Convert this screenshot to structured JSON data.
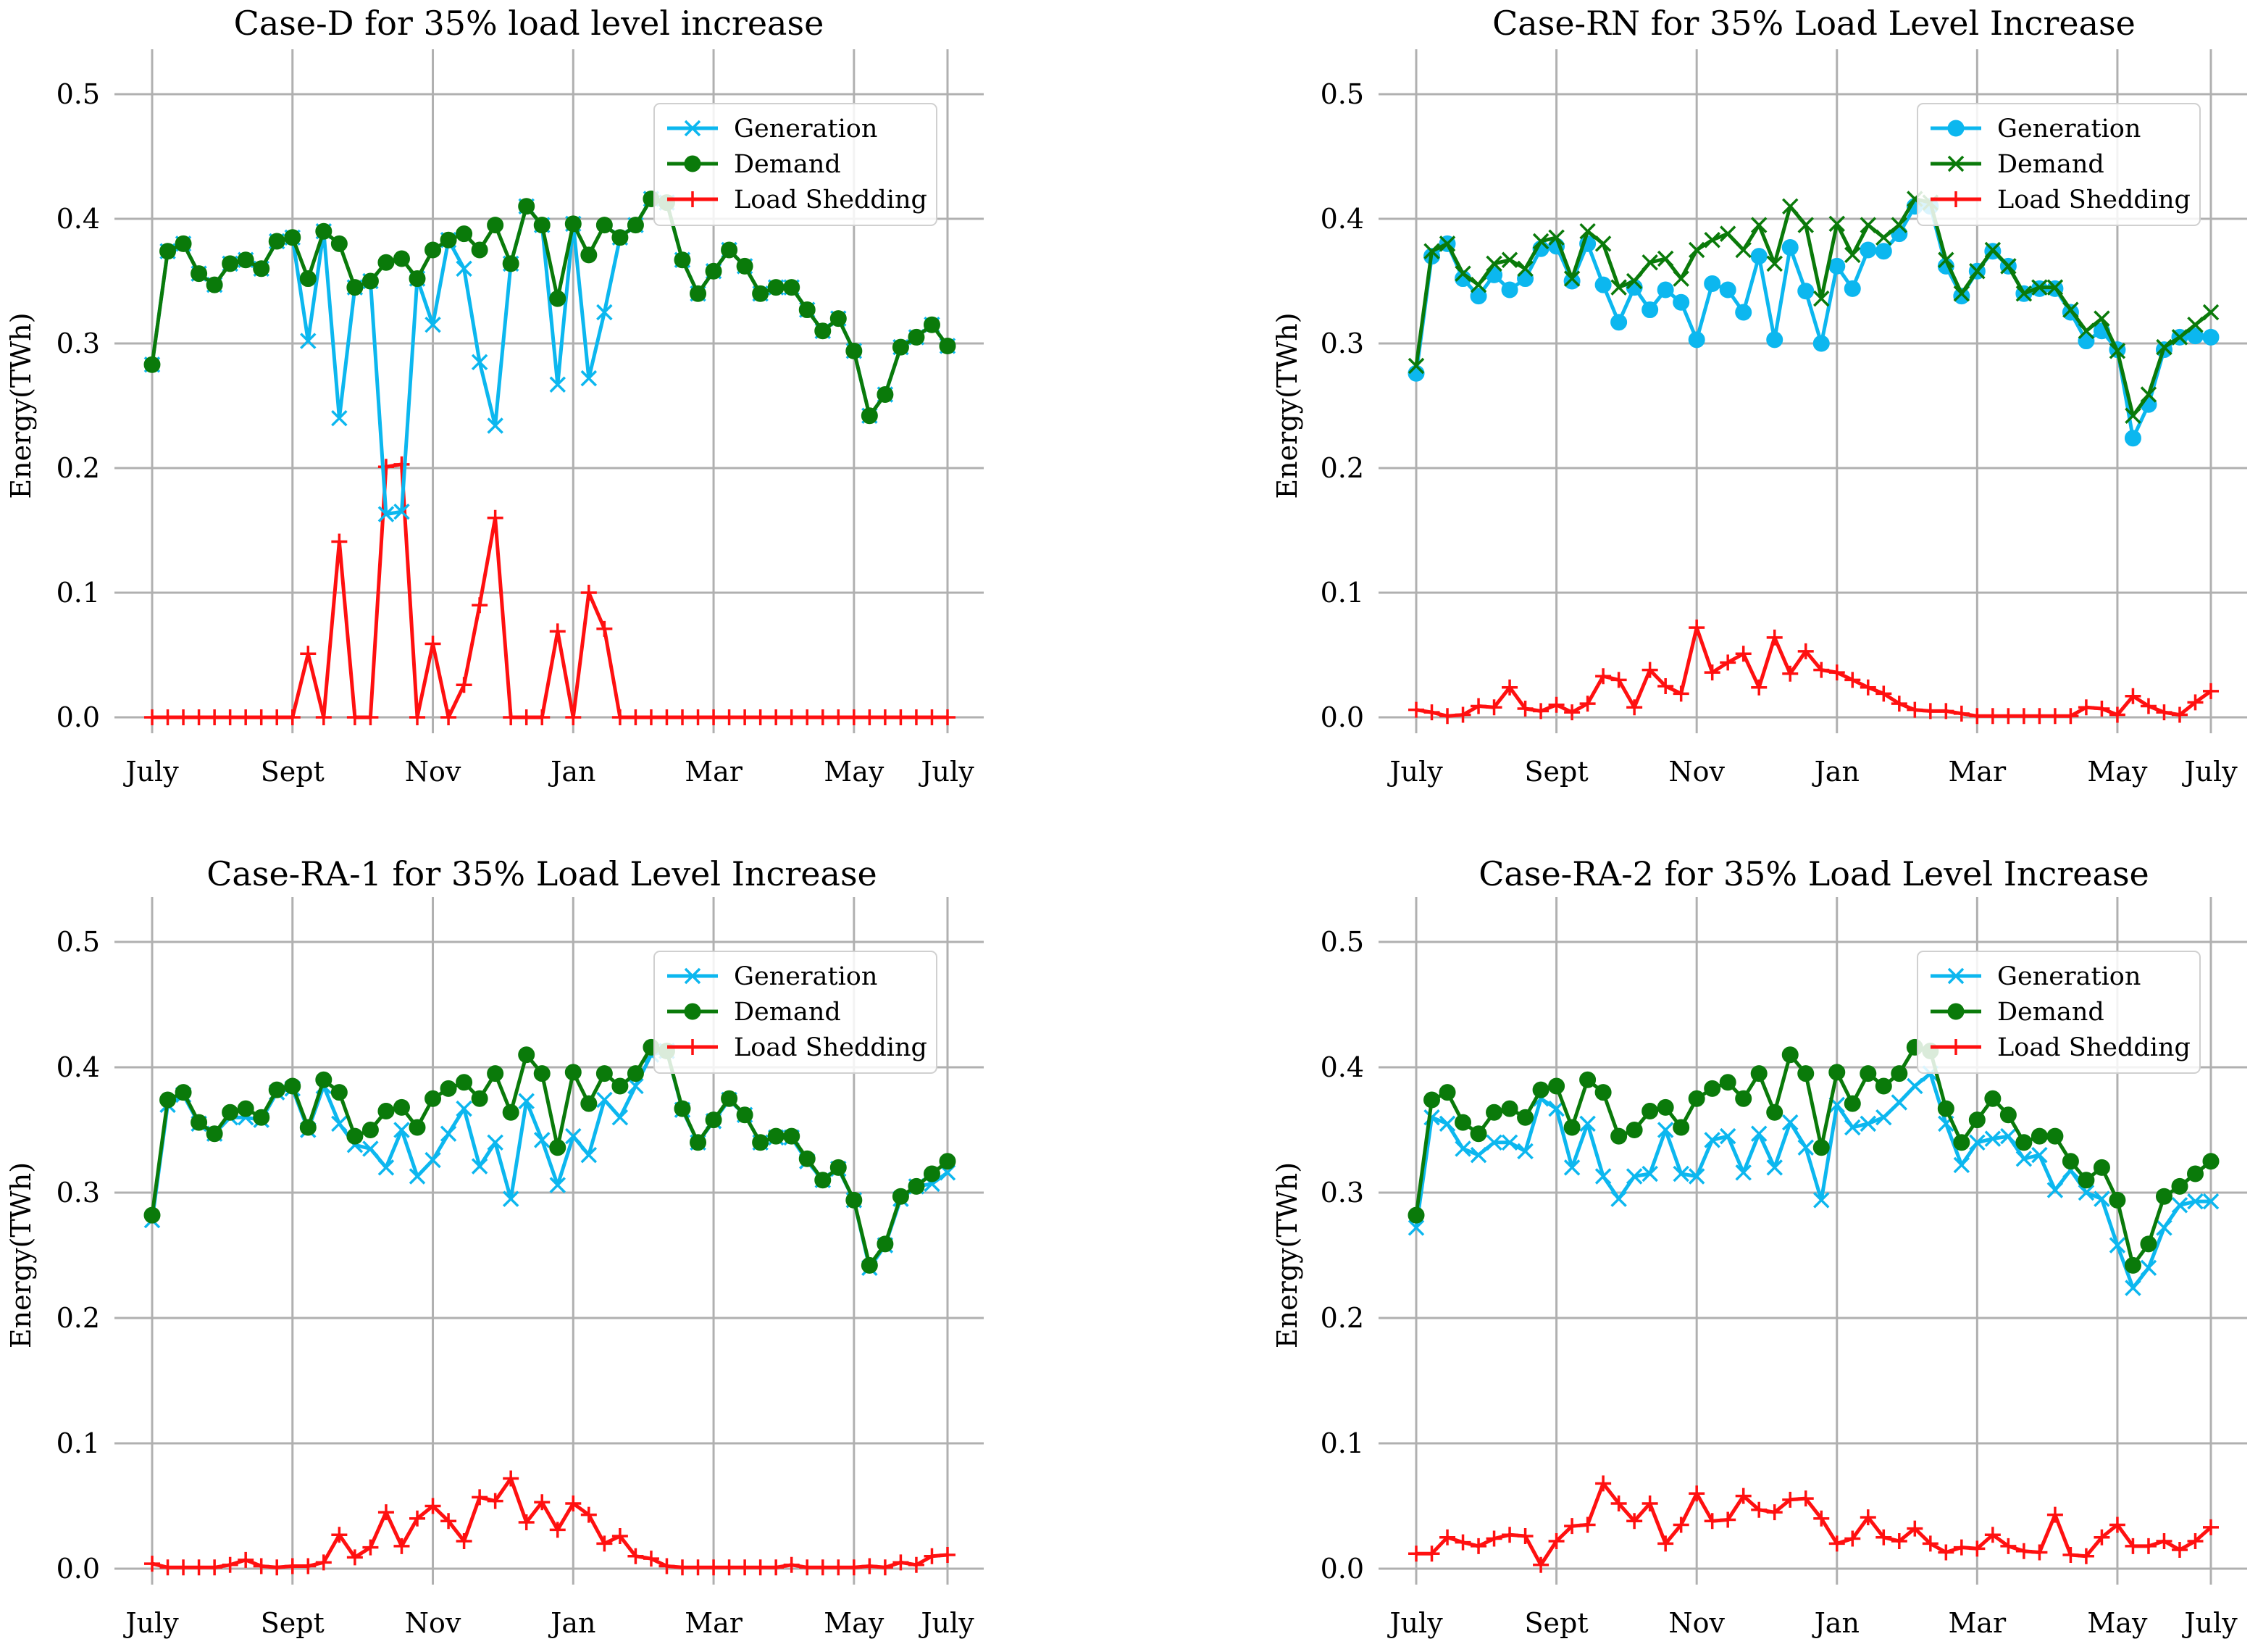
{
  "figure": {
    "colors": {
      "generation": "#0cb7ef",
      "demand": "#0a7a0a",
      "load_shedding": "#ff1010",
      "grid": "#b0b0b0"
    }
  },
  "chart_data": [
    {
      "type": "line",
      "title": "Case-D for 35% load level increase",
      "xlabel": "",
      "ylabel": "Energy(TWh)",
      "ylim": [
        0,
        0.5
      ],
      "yticks": [
        "0.0",
        "0.1",
        "0.2",
        "0.3",
        "0.4",
        "0.5"
      ],
      "xticks": [
        "July",
        "Sept",
        "Nov",
        "Jan",
        "Mar",
        "May",
        "July"
      ],
      "legend": "top-right",
      "series": [
        {
          "name": "Generation",
          "color": "#0cb7ef",
          "marker": "x",
          "values": [
            0.283,
            0.374,
            0.38,
            0.356,
            0.347,
            0.364,
            0.367,
            0.36,
            0.382,
            0.385,
            0.302,
            0.39,
            0.24,
            0.345,
            0.35,
            0.163,
            0.165,
            0.352,
            0.315,
            0.383,
            0.36,
            0.285,
            0.234,
            0.364,
            0.41,
            0.395,
            0.267,
            0.396,
            0.272,
            0.325,
            0.385,
            0.395,
            0.416,
            0.413,
            0.367,
            0.34,
            0.358,
            0.375,
            0.362,
            0.34,
            0.345,
            0.345,
            0.327,
            0.31,
            0.32,
            0.294,
            0.242,
            0.259,
            0.297,
            0.305,
            0.315,
            0.298
          ]
        },
        {
          "name": "Demand",
          "color": "#0a7a0a",
          "marker": "o",
          "values": [
            0.283,
            0.374,
            0.38,
            0.356,
            0.347,
            0.364,
            0.367,
            0.36,
            0.382,
            0.385,
            0.352,
            0.39,
            0.38,
            0.345,
            0.35,
            0.365,
            0.368,
            0.352,
            0.375,
            0.383,
            0.388,
            0.375,
            0.395,
            0.364,
            0.41,
            0.395,
            0.336,
            0.396,
            0.371,
            0.395,
            0.385,
            0.395,
            0.416,
            0.413,
            0.367,
            0.34,
            0.358,
            0.375,
            0.362,
            0.34,
            0.345,
            0.345,
            0.327,
            0.31,
            0.32,
            0.294,
            0.242,
            0.259,
            0.297,
            0.305,
            0.315,
            0.298
          ]
        },
        {
          "name": "Load Shedding",
          "color": "#ff1010",
          "marker": "+",
          "values": [
            0,
            0,
            0,
            0,
            0,
            0,
            0,
            0,
            0,
            0,
            0.051,
            0,
            0.141,
            0,
            0,
            0.201,
            0.203,
            0,
            0.059,
            0,
            0.026,
            0.09,
            0.16,
            0,
            0,
            0,
            0.069,
            0,
            0.1,
            0.071,
            0,
            0,
            0,
            0,
            0,
            0,
            0,
            0,
            0,
            0,
            0,
            0,
            0,
            0,
            0,
            0,
            0,
            0,
            0,
            0,
            0,
            0
          ]
        }
      ]
    },
    {
      "type": "line",
      "title": "Case-RN for 35% Load Level Increase",
      "xlabel": "",
      "ylabel": "Energy(TWh)",
      "ylim": [
        0,
        0.5
      ],
      "yticks": [
        "0.0",
        "0.1",
        "0.2",
        "0.3",
        "0.4",
        "0.5"
      ],
      "xticks": [
        "July",
        "Sept",
        "Nov",
        "Jan",
        "Mar",
        "May",
        "July"
      ],
      "legend": "top-right",
      "series": [
        {
          "name": "Generation",
          "color": "#0cb7ef",
          "marker": "o",
          "values": [
            0.276,
            0.37,
            0.38,
            0.352,
            0.338,
            0.355,
            0.343,
            0.352,
            0.376,
            0.378,
            0.35,
            0.38,
            0.347,
            0.317,
            0.345,
            0.327,
            0.343,
            0.333,
            0.303,
            0.348,
            0.343,
            0.325,
            0.37,
            0.303,
            0.377,
            0.342,
            0.3,
            0.362,
            0.344,
            0.375,
            0.374,
            0.388,
            0.41,
            0.41,
            0.362,
            0.338,
            0.358,
            0.374,
            0.362,
            0.34,
            0.344,
            0.344,
            0.325,
            0.302,
            0.31,
            0.295,
            0.224,
            0.251,
            0.295,
            0.305,
            0.306,
            0.305
          ]
        },
        {
          "name": "Demand",
          "color": "#0a7a0a",
          "marker": "x",
          "values": [
            0.282,
            0.374,
            0.38,
            0.356,
            0.347,
            0.364,
            0.367,
            0.36,
            0.382,
            0.385,
            0.352,
            0.39,
            0.38,
            0.345,
            0.35,
            0.365,
            0.368,
            0.352,
            0.375,
            0.383,
            0.388,
            0.375,
            0.395,
            0.364,
            0.41,
            0.395,
            0.336,
            0.396,
            0.371,
            0.395,
            0.385,
            0.395,
            0.416,
            0.413,
            0.367,
            0.34,
            0.358,
            0.375,
            0.362,
            0.34,
            0.345,
            0.345,
            0.327,
            0.31,
            0.32,
            0.294,
            0.242,
            0.259,
            0.297,
            0.305,
            0.315,
            0.325
          ]
        },
        {
          "name": "Load Shedding",
          "color": "#ff1010",
          "marker": "+",
          "values": [
            0.006,
            0.004,
            0.001,
            0.002,
            0.009,
            0.008,
            0.024,
            0.007,
            0.005,
            0.01,
            0.004,
            0.011,
            0.033,
            0.03,
            0.008,
            0.038,
            0.025,
            0.019,
            0.072,
            0.036,
            0.044,
            0.051,
            0.024,
            0.064,
            0.035,
            0.053,
            0.038,
            0.036,
            0.03,
            0.024,
            0.019,
            0.011,
            0.006,
            0.005,
            0.005,
            0.003,
            0.001,
            0.001,
            0.001,
            0.001,
            0.001,
            0.001,
            0.001,
            0.008,
            0.007,
            0.002,
            0.017,
            0.009,
            0.004,
            0.002,
            0.012,
            0.021
          ]
        }
      ]
    },
    {
      "type": "line",
      "title": "Case-RA-1 for 35% Load Level Increase",
      "xlabel": "",
      "ylabel": "Energy(TWh)",
      "ylim": [
        0,
        0.5
      ],
      "yticks": [
        "0.0",
        "0.1",
        "0.2",
        "0.3",
        "0.4",
        "0.5"
      ],
      "xticks": [
        "July",
        "Sept",
        "Nov",
        "Jan",
        "Mar",
        "May",
        "July"
      ],
      "legend": "top-right",
      "series": [
        {
          "name": "Generation",
          "color": "#0cb7ef",
          "marker": "x",
          "values": [
            0.278,
            0.37,
            0.378,
            0.355,
            0.347,
            0.36,
            0.36,
            0.358,
            0.38,
            0.383,
            0.35,
            0.385,
            0.355,
            0.338,
            0.335,
            0.32,
            0.35,
            0.313,
            0.326,
            0.347,
            0.367,
            0.321,
            0.34,
            0.295,
            0.373,
            0.342,
            0.306,
            0.345,
            0.33,
            0.374,
            0.36,
            0.385,
            0.41,
            0.413,
            0.366,
            0.34,
            0.357,
            0.374,
            0.362,
            0.34,
            0.344,
            0.344,
            0.325,
            0.31,
            0.319,
            0.294,
            0.24,
            0.258,
            0.295,
            0.305,
            0.307,
            0.316
          ]
        },
        {
          "name": "Demand",
          "color": "#0a7a0a",
          "marker": "o",
          "values": [
            0.282,
            0.374,
            0.38,
            0.356,
            0.347,
            0.364,
            0.367,
            0.36,
            0.382,
            0.385,
            0.352,
            0.39,
            0.38,
            0.345,
            0.35,
            0.365,
            0.368,
            0.352,
            0.375,
            0.383,
            0.388,
            0.375,
            0.395,
            0.364,
            0.41,
            0.395,
            0.336,
            0.396,
            0.371,
            0.395,
            0.385,
            0.395,
            0.416,
            0.413,
            0.367,
            0.34,
            0.358,
            0.375,
            0.362,
            0.34,
            0.345,
            0.345,
            0.327,
            0.31,
            0.32,
            0.294,
            0.242,
            0.259,
            0.297,
            0.305,
            0.315,
            0.325
          ]
        },
        {
          "name": "Load Shedding",
          "color": "#ff1010",
          "marker": "+",
          "values": [
            0.004,
            0.001,
            0.001,
            0.001,
            0.001,
            0.003,
            0.007,
            0.002,
            0.001,
            0.002,
            0.002,
            0.005,
            0.027,
            0.009,
            0.017,
            0.045,
            0.018,
            0.04,
            0.05,
            0.038,
            0.022,
            0.057,
            0.054,
            0.072,
            0.037,
            0.053,
            0.031,
            0.052,
            0.043,
            0.02,
            0.026,
            0.01,
            0.008,
            0.002,
            0.001,
            0.001,
            0.001,
            0.001,
            0.001,
            0.001,
            0.001,
            0.003,
            0.001,
            0.001,
            0.001,
            0.001,
            0.002,
            0.001,
            0.005,
            0.003,
            0.01,
            0.011
          ]
        }
      ]
    },
    {
      "type": "line",
      "title": "Case-RA-2 for 35% Load Level Increase",
      "xlabel": "",
      "ylabel": "Energy(TWh)",
      "ylim": [
        0,
        0.5
      ],
      "yticks": [
        "0.0",
        "0.1",
        "0.2",
        "0.3",
        "0.4",
        "0.5"
      ],
      "xticks": [
        "July",
        "Sept",
        "Nov",
        "Jan",
        "Mar",
        "May",
        "July"
      ],
      "legend": "top-right",
      "series": [
        {
          "name": "Generation",
          "color": "#0cb7ef",
          "marker": "x",
          "values": [
            0.272,
            0.36,
            0.355,
            0.335,
            0.33,
            0.34,
            0.34,
            0.333,
            0.375,
            0.367,
            0.32,
            0.355,
            0.313,
            0.295,
            0.313,
            0.315,
            0.35,
            0.315,
            0.313,
            0.342,
            0.345,
            0.316,
            0.347,
            0.32,
            0.356,
            0.336,
            0.294,
            0.37,
            0.352,
            0.355,
            0.36,
            0.372,
            0.385,
            0.395,
            0.355,
            0.322,
            0.34,
            0.343,
            0.345,
            0.327,
            0.33,
            0.302,
            0.318,
            0.3,
            0.295,
            0.258,
            0.224,
            0.24,
            0.272,
            0.29,
            0.293,
            0.293
          ]
        },
        {
          "name": "Demand",
          "color": "#0a7a0a",
          "marker": "o",
          "values": [
            0.282,
            0.374,
            0.38,
            0.356,
            0.347,
            0.364,
            0.367,
            0.36,
            0.382,
            0.385,
            0.352,
            0.39,
            0.38,
            0.345,
            0.35,
            0.365,
            0.368,
            0.352,
            0.375,
            0.383,
            0.388,
            0.375,
            0.395,
            0.364,
            0.41,
            0.395,
            0.336,
            0.396,
            0.371,
            0.395,
            0.385,
            0.395,
            0.416,
            0.413,
            0.367,
            0.34,
            0.358,
            0.375,
            0.362,
            0.34,
            0.345,
            0.345,
            0.325,
            0.31,
            0.32,
            0.294,
            0.242,
            0.259,
            0.297,
            0.305,
            0.315,
            0.325
          ]
        },
        {
          "name": "Load Shedding",
          "color": "#ff1010",
          "marker": "+",
          "values": [
            0.012,
            0.012,
            0.025,
            0.021,
            0.018,
            0.024,
            0.027,
            0.026,
            0.003,
            0.022,
            0.034,
            0.035,
            0.068,
            0.052,
            0.038,
            0.052,
            0.02,
            0.035,
            0.06,
            0.038,
            0.039,
            0.058,
            0.047,
            0.045,
            0.055,
            0.056,
            0.04,
            0.02,
            0.024,
            0.041,
            0.025,
            0.022,
            0.032,
            0.02,
            0.013,
            0.017,
            0.016,
            0.027,
            0.018,
            0.014,
            0.013,
            0.043,
            0.011,
            0.01,
            0.025,
            0.035,
            0.018,
            0.018,
            0.022,
            0.015,
            0.022,
            0.033
          ]
        }
      ]
    }
  ]
}
